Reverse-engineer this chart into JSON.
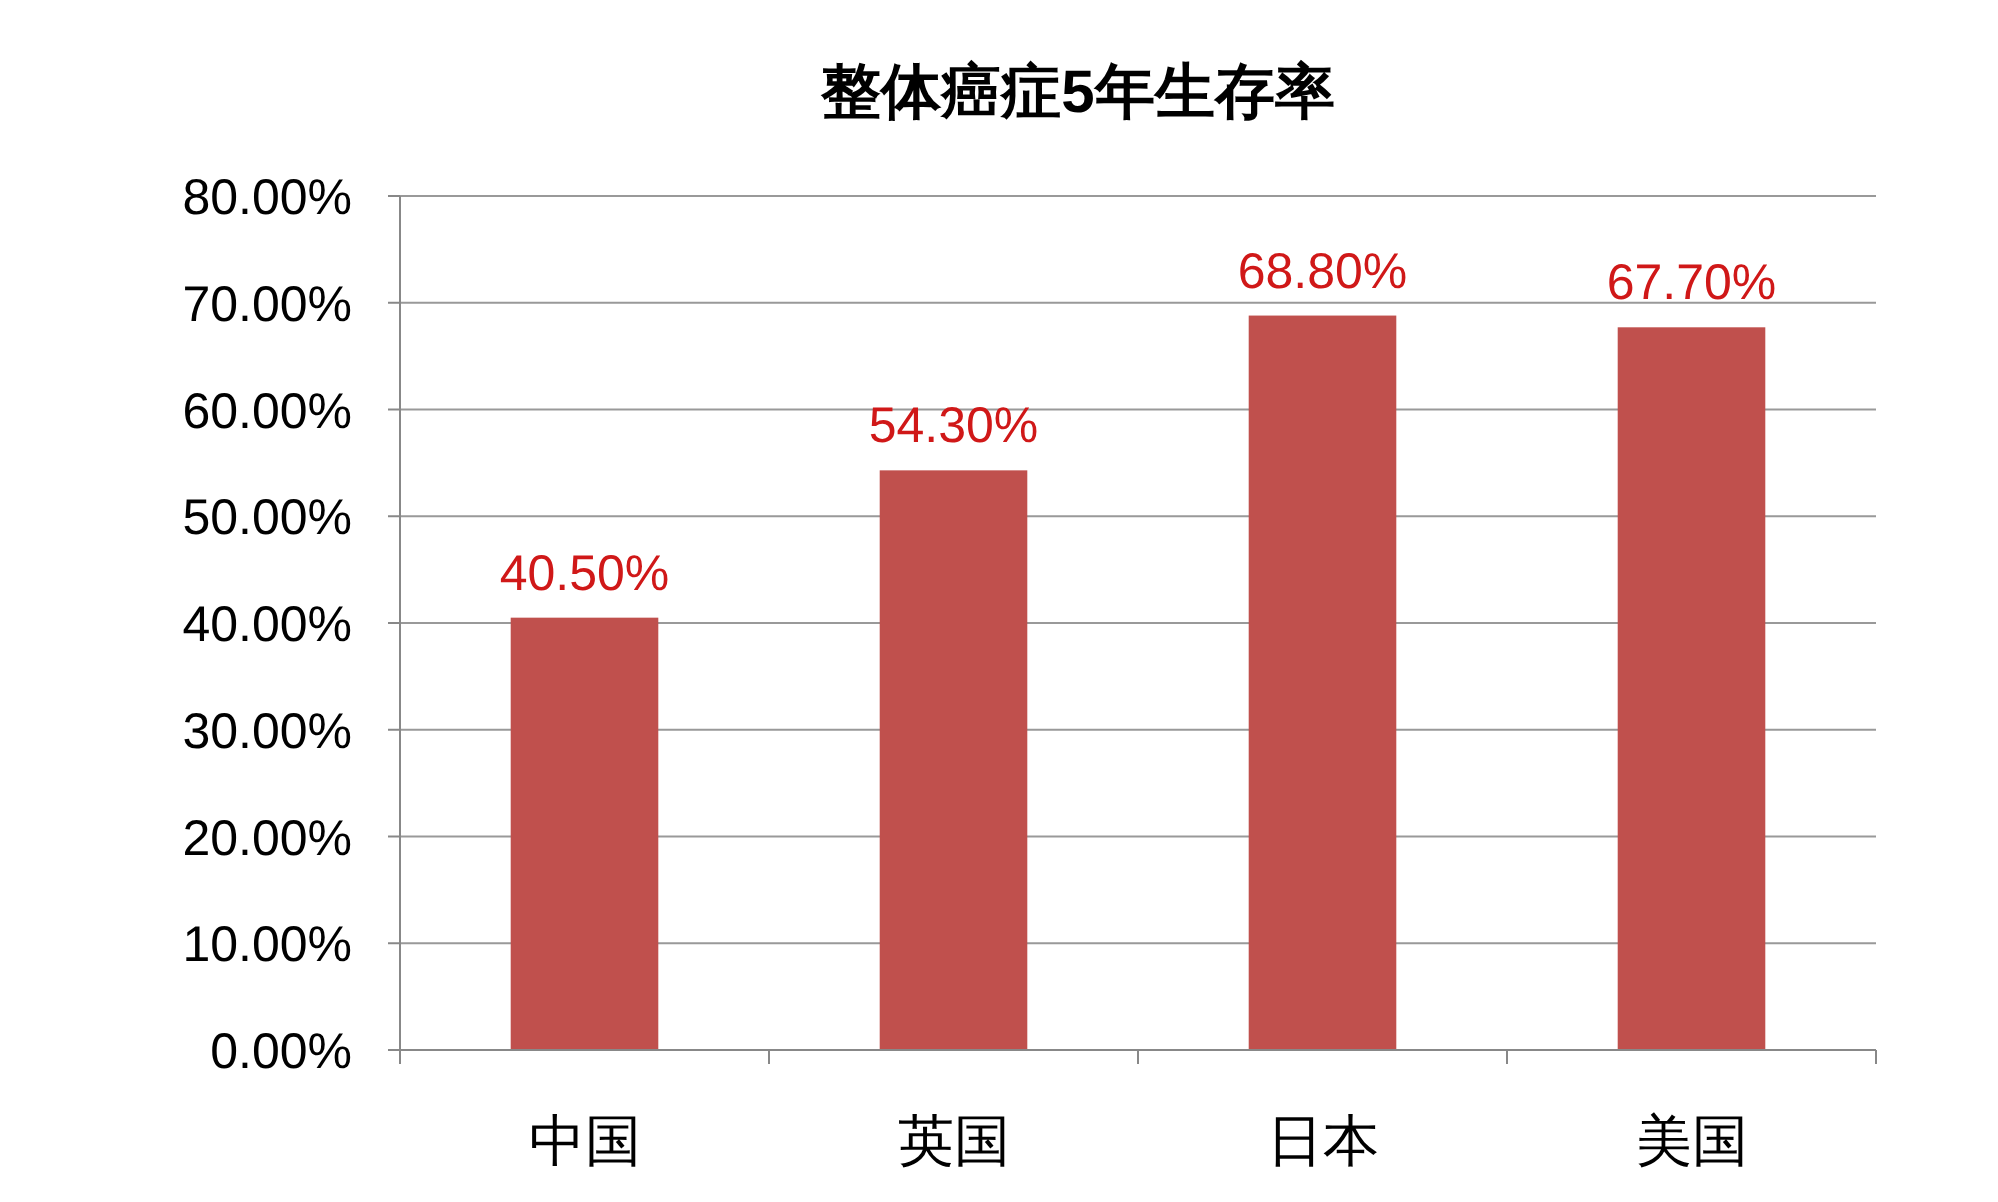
{
  "chart_data": {
    "type": "bar",
    "title": "整体癌症5年生存率",
    "categories": [
      "中国",
      "英国",
      "日本",
      "美国"
    ],
    "values": [
      40.5,
      54.3,
      68.8,
      67.7
    ],
    "value_labels": [
      "40.50%",
      "54.30%",
      "68.80%",
      "67.70%"
    ],
    "color": "#c0504d",
    "ylim": [
      0,
      80
    ],
    "yticks": [
      {
        "value": 0,
        "label": "0.00%"
      },
      {
        "value": 10,
        "label": "10.00%"
      },
      {
        "value": 20,
        "label": "20.00%"
      },
      {
        "value": 30,
        "label": "30.00%"
      },
      {
        "value": 40,
        "label": "40.00%"
      },
      {
        "value": 50,
        "label": "50.00%"
      },
      {
        "value": 60,
        "label": "60.00%"
      },
      {
        "value": 70,
        "label": "70.00%"
      },
      {
        "value": 80,
        "label": "80.00%"
      }
    ],
    "grid": "y"
  }
}
